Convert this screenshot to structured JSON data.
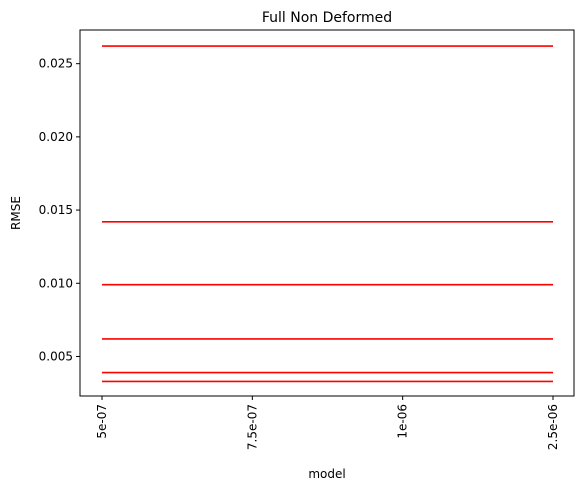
{
  "chart_data": {
    "type": "line",
    "title": "Full Non Deformed",
    "xlabel": "model",
    "ylabel": "RMSE",
    "categories": [
      "5e-07",
      "7.5e-07",
      "1e-06",
      "2.5e-06"
    ],
    "ylim": [
      0.0023,
      0.0273
    ],
    "yticks": [
      0.005,
      0.01,
      0.015,
      0.02,
      0.025
    ],
    "ytick_labels": [
      "0.005",
      "0.010",
      "0.015",
      "0.020",
      "0.025"
    ],
    "grid": false,
    "series": [
      {
        "values": [
          0.0262,
          0.0262,
          0.0262,
          0.0262
        ]
      },
      {
        "values": [
          0.0142,
          0.0142,
          0.0142,
          0.0142
        ]
      },
      {
        "values": [
          0.0099,
          0.0099,
          0.0099,
          0.0099
        ]
      },
      {
        "values": [
          0.0062,
          0.0062,
          0.0062,
          0.0062
        ]
      },
      {
        "values": [
          0.0039,
          0.0039,
          0.0039,
          0.0039
        ]
      },
      {
        "values": [
          0.0033,
          0.0033,
          0.0033,
          0.0033
        ]
      }
    ],
    "line_color": "#ff0000"
  }
}
